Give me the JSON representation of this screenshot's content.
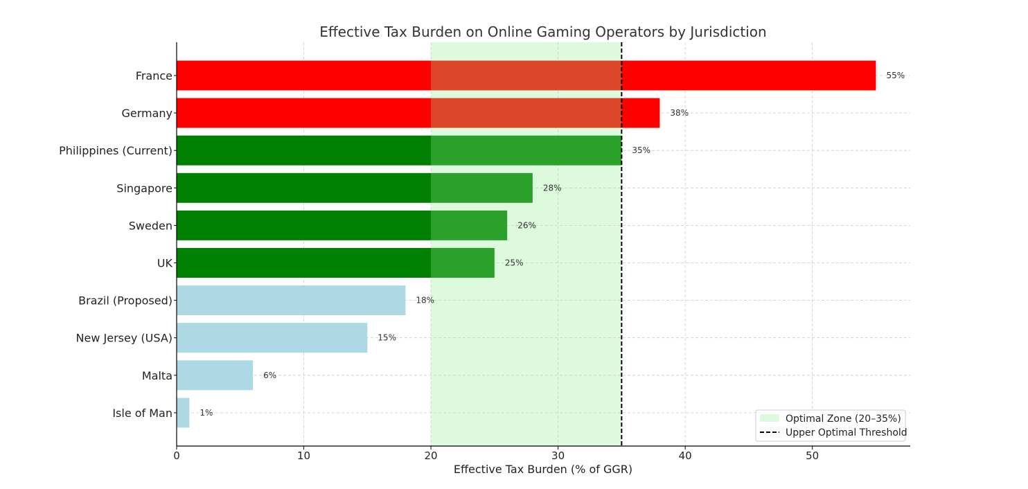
{
  "chart_data": {
    "type": "bar",
    "orientation": "horizontal",
    "title": "Effective Tax Burden on Online Gaming Operators by Jurisdiction",
    "xlabel": "Effective Tax Burden (% of GGR)",
    "ylabel": "",
    "xlim": [
      0,
      57.7
    ],
    "xticks": [
      0,
      10,
      20,
      30,
      40,
      50
    ],
    "grid": true,
    "categories": [
      "France",
      "Germany",
      "Philippines (Current)",
      "Singapore",
      "Sweden",
      "UK",
      "Brazil (Proposed)",
      "New Jersey (USA)",
      "Malta",
      "Isle of Man"
    ],
    "values": [
      55,
      38,
      35,
      28,
      26,
      25,
      18,
      15,
      6,
      1
    ],
    "data_labels": [
      "55%",
      "38%",
      "35%",
      "28%",
      "26%",
      "25%",
      "18%",
      "15%",
      "6%",
      "1%"
    ],
    "bar_colors": [
      "#ff0000",
      "#ff0000",
      "#008000",
      "#008000",
      "#008000",
      "#008000",
      "#add8e6",
      "#add8e6",
      "#add8e6",
      "#add8e6"
    ],
    "shaded_region": {
      "from": 20,
      "to": 35,
      "color": "#90ee90",
      "label": "Optimal Zone (20–35%)"
    },
    "threshold_line": {
      "value": 35,
      "color": "#000000",
      "style": "dashed",
      "label": "Upper Optimal Threshold"
    },
    "legend": {
      "placement": "bottom-right",
      "entries": [
        "Optimal Zone (20–35%)",
        "Upper Optimal Threshold"
      ]
    }
  }
}
